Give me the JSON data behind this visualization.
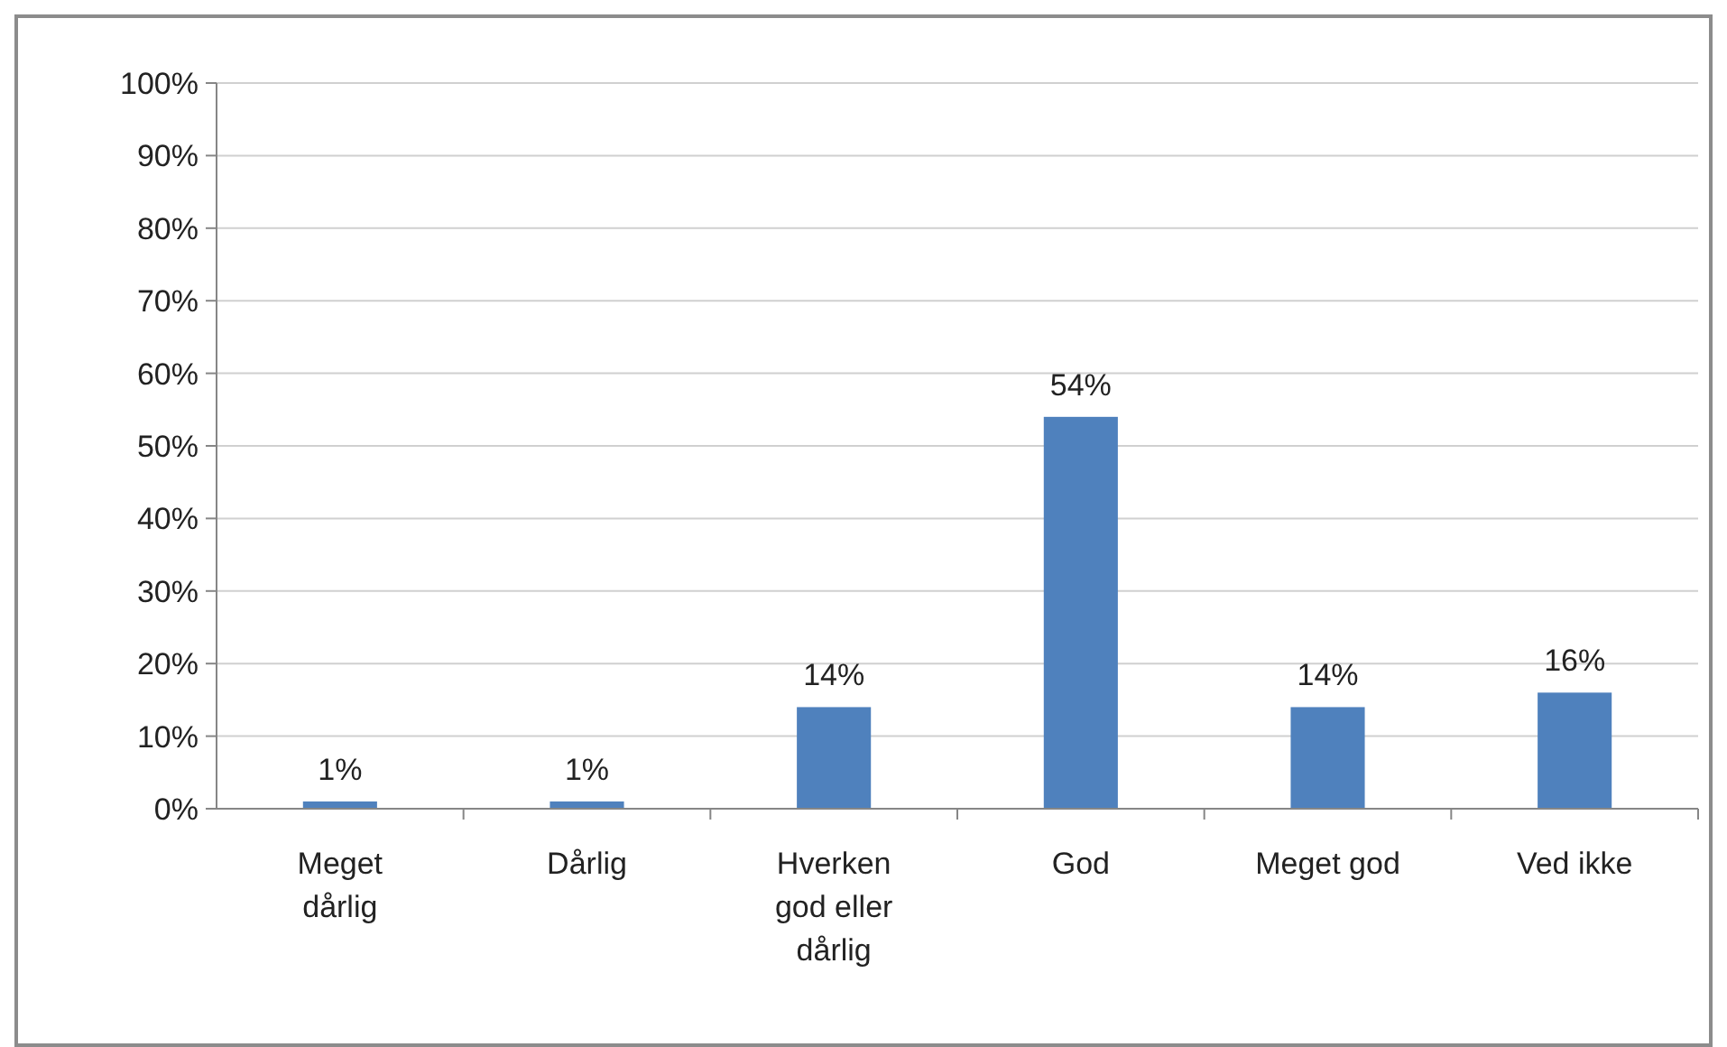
{
  "chart_data": {
    "type": "bar",
    "categories": [
      "Meget dårlig",
      "Dårlig",
      "Hverken god eller dårlig",
      "God",
      "Meget god",
      "Ved ikke"
    ],
    "values": [
      1,
      1,
      14,
      54,
      14,
      16
    ],
    "value_labels": [
      "1%",
      "1%",
      "14%",
      "54%",
      "14%",
      "16%"
    ],
    "color": "#4f81bd",
    "ylim": [
      0,
      100
    ],
    "yticks": [
      {
        "value": 0,
        "label": "0%"
      },
      {
        "value": 10,
        "label": "10%"
      },
      {
        "value": 20,
        "label": "20%"
      },
      {
        "value": 30,
        "label": "30%"
      },
      {
        "value": 40,
        "label": "40%"
      },
      {
        "value": 50,
        "label": "50%"
      },
      {
        "value": 60,
        "label": "60%"
      },
      {
        "value": 70,
        "label": "70%"
      },
      {
        "value": 80,
        "label": "80%"
      },
      {
        "value": 90,
        "label": "90%"
      },
      {
        "value": 100,
        "label": "100%"
      }
    ],
    "grid": "y"
  }
}
